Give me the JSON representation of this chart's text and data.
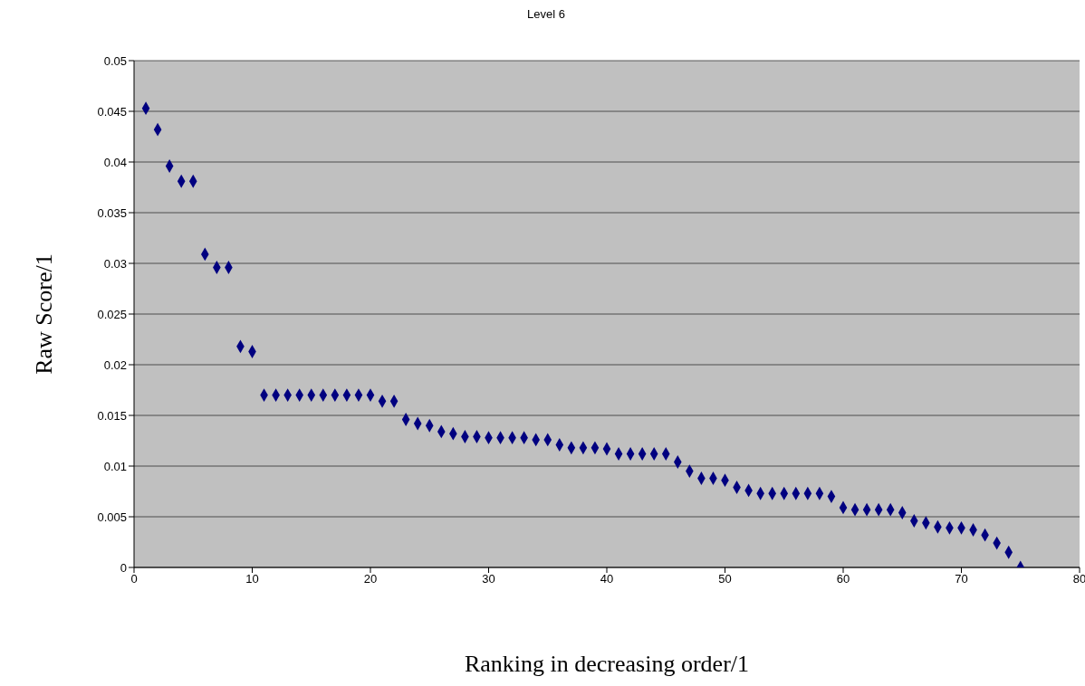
{
  "chart_data": {
    "type": "scatter",
    "title": "Level 6",
    "xlabel": "Ranking in decreasing order/1",
    "ylabel": "Raw Score/1",
    "x": [
      1,
      2,
      3,
      4,
      5,
      6,
      7,
      8,
      9,
      10,
      11,
      12,
      13,
      14,
      15,
      16,
      17,
      18,
      19,
      20,
      21,
      22,
      23,
      24,
      25,
      26,
      27,
      28,
      29,
      30,
      31,
      32,
      33,
      34,
      35,
      36,
      37,
      38,
      39,
      40,
      41,
      42,
      43,
      44,
      45,
      46,
      47,
      48,
      49,
      50,
      51,
      52,
      53,
      54,
      55,
      56,
      57,
      58,
      59,
      60,
      61,
      62,
      63,
      64,
      65,
      66,
      67,
      68,
      69,
      70,
      71,
      72,
      73,
      74,
      75
    ],
    "series": [
      {
        "color": "#000080",
        "values": [
          0.0453,
          0.0432,
          0.0396,
          0.0381,
          0.0381,
          0.0309,
          0.0296,
          0.0296,
          0.0218,
          0.0213,
          0.017,
          0.017,
          0.017,
          0.017,
          0.017,
          0.017,
          0.017,
          0.017,
          0.017,
          0.017,
          0.0164,
          0.0164,
          0.0146,
          0.0142,
          0.014,
          0.0134,
          0.0132,
          0.0129,
          0.0129,
          0.0128,
          0.0128,
          0.0128,
          0.0128,
          0.0126,
          0.0126,
          0.0121,
          0.0118,
          0.0118,
          0.0118,
          0.0117,
          0.0112,
          0.0112,
          0.0112,
          0.0112,
          0.0112,
          0.0104,
          0.0095,
          0.0088,
          0.0088,
          0.0086,
          0.0079,
          0.0076,
          0.0073,
          0.0073,
          0.0073,
          0.0073,
          0.0073,
          0.0073,
          0.007,
          0.0059,
          0.0057,
          0.0057,
          0.0057,
          0.0057,
          0.0054,
          0.0046,
          0.0044,
          0.004,
          0.0039,
          0.0039,
          0.0037,
          0.0032,
          0.0024,
          0.0015,
          0
        ]
      }
    ],
    "xlim": [
      0,
      80
    ],
    "xticks": [
      0,
      10,
      20,
      30,
      40,
      50,
      60,
      70,
      80
    ],
    "ylim": [
      0,
      0.05
    ],
    "yticks": [
      0,
      0.005,
      0.01,
      0.015,
      0.02,
      0.025,
      0.03,
      0.035,
      0.04,
      0.045,
      0.05
    ],
    "grid": "y",
    "legend": false,
    "marker": "diamond"
  }
}
